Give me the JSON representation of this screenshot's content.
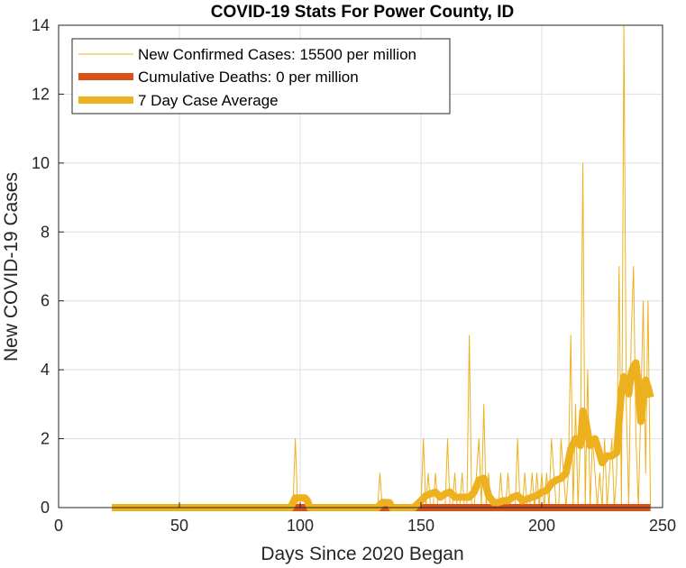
{
  "chart_data": {
    "type": "line",
    "title": "COVID-19 Stats For Power County, ID",
    "xlabel": "Days Since 2020 Began",
    "ylabel": "New COVID-19 Cases",
    "xlim": [
      0,
      250
    ],
    "ylim": [
      0,
      14
    ],
    "xticks": [
      "0",
      "50",
      "100",
      "150",
      "200",
      "250"
    ],
    "yticks": [
      "0",
      "2",
      "4",
      "6",
      "8",
      "10",
      "12",
      "14"
    ],
    "grid": true,
    "legend_position": "top-left",
    "series": [
      {
        "name": "New Confirmed Cases: 15500 per million",
        "color": "#EDB120",
        "x": [
          22,
          97,
          98,
          99,
          100,
          132,
          133,
          134,
          150,
          151,
          152,
          153,
          154,
          155,
          156,
          157,
          158,
          160,
          161,
          162,
          163,
          164,
          165,
          166,
          167,
          168,
          169,
          170,
          171,
          172,
          173,
          174,
          175,
          176,
          177,
          178,
          179,
          180,
          181,
          182,
          183,
          184,
          185,
          186,
          187,
          188,
          189,
          190,
          191,
          192,
          193,
          194,
          195,
          196,
          197,
          198,
          199,
          200,
          201,
          202,
          203,
          204,
          205,
          206,
          207,
          208,
          209,
          210,
          211,
          212,
          213,
          214,
          215,
          216,
          217,
          218,
          219,
          220,
          221,
          222,
          223,
          224,
          225,
          226,
          227,
          228,
          229,
          230,
          231,
          232,
          233,
          234,
          235,
          236,
          237,
          238,
          239,
          240,
          241,
          242,
          243,
          244,
          245
        ],
        "y": [
          0,
          0,
          2,
          0,
          0,
          0,
          1,
          0,
          0,
          2,
          0,
          1,
          0,
          0,
          1,
          0,
          0,
          0,
          2,
          0,
          0,
          1,
          0,
          0,
          1,
          0,
          0,
          5,
          0,
          0,
          1,
          2,
          0,
          3,
          0,
          1,
          0,
          0,
          0,
          0,
          1,
          0,
          0,
          1,
          0,
          0,
          0,
          2,
          0,
          0,
          1,
          0,
          0,
          1,
          0,
          1,
          0,
          1,
          0,
          1,
          0,
          2,
          1,
          0,
          0,
          2,
          1,
          0,
          1,
          5,
          0,
          3,
          0,
          2,
          10,
          0,
          4,
          0,
          2,
          1,
          0,
          1,
          0,
          2,
          0,
          1,
          2,
          0,
          1,
          7,
          0,
          14,
          3,
          0,
          5,
          7,
          2,
          0,
          3,
          6,
          1,
          6,
          0
        ]
      },
      {
        "name": "Cumulative Deaths: 0 per million",
        "color": "#D95319",
        "x": [
          22,
          245
        ],
        "y": [
          0,
          0
        ]
      },
      {
        "name": "7 Day Case Average",
        "color": "#EDB120",
        "x": [
          22,
          96,
          98,
          100,
          102,
          103,
          104,
          132,
          134,
          137,
          138,
          147,
          150,
          152,
          154,
          156,
          158,
          160,
          162,
          164,
          166,
          168,
          170,
          172,
          174,
          176,
          178,
          180,
          182,
          184,
          186,
          188,
          190,
          192,
          194,
          196,
          198,
          200,
          202,
          204,
          206,
          208,
          210,
          212,
          214,
          216,
          217,
          218,
          220,
          222,
          223,
          225,
          227,
          229,
          231,
          233,
          234,
          236,
          237,
          238,
          239,
          240,
          241,
          242,
          243,
          244,
          245
        ],
        "y": [
          0,
          0,
          0.28,
          0.28,
          0.28,
          0.2,
          0,
          0,
          0.15,
          0.14,
          0,
          0,
          0.2,
          0.35,
          0.4,
          0.45,
          0.3,
          0.4,
          0.45,
          0.3,
          0.3,
          0.3,
          0.3,
          0.45,
          0.8,
          0.85,
          0.35,
          0.15,
          0.15,
          0.2,
          0.2,
          0.3,
          0.35,
          0.2,
          0.25,
          0.3,
          0.35,
          0.45,
          0.5,
          0.7,
          0.8,
          0.85,
          1,
          1.7,
          2,
          1.8,
          2.8,
          2.6,
          1.8,
          2,
          1.8,
          1.3,
          1.5,
          1.5,
          1.6,
          3.4,
          3.8,
          3.3,
          3.9,
          4.1,
          4.2,
          3.5,
          2.5,
          3.2,
          3.7,
          3.5,
          3.2
        ]
      }
    ]
  }
}
